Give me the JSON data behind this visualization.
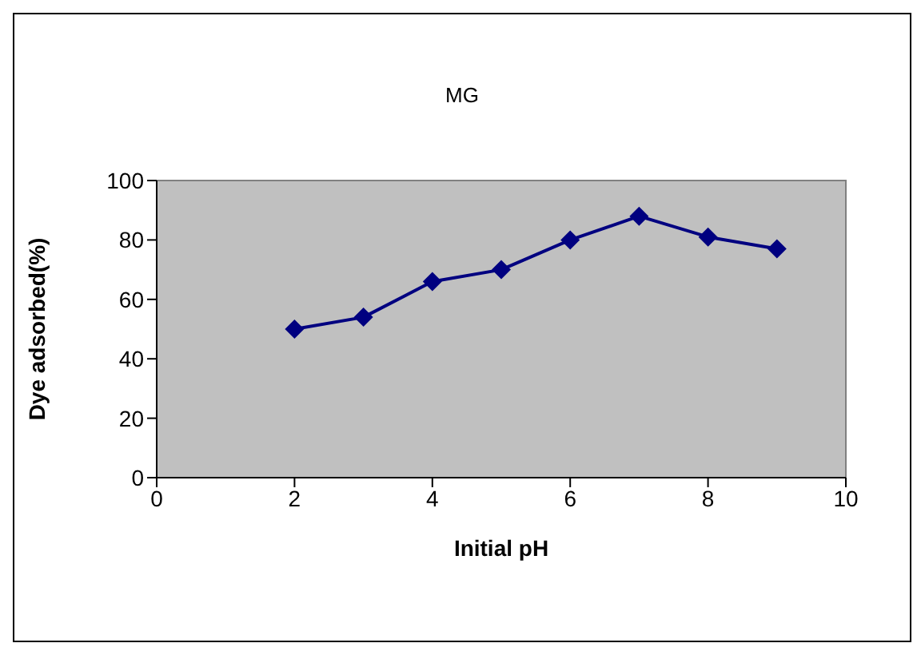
{
  "chart_data": {
    "type": "line",
    "title": "MG",
    "xlabel": "Initial pH",
    "ylabel": "Dye adsorbed(%)",
    "x": [
      2,
      3,
      4,
      5,
      6,
      7,
      8,
      9
    ],
    "series": [
      {
        "color": "#000080",
        "values": [
          50,
          54,
          66,
          70,
          80,
          88,
          81,
          77
        ]
      }
    ],
    "xlim": [
      0,
      10
    ],
    "xticks": [
      0,
      2,
      4,
      6,
      8,
      10
    ],
    "ylim": [
      0,
      100
    ],
    "yticks": [
      0,
      20,
      40,
      60,
      80,
      100
    ],
    "legend": false,
    "marker": "diamond",
    "line_style": "solid"
  }
}
